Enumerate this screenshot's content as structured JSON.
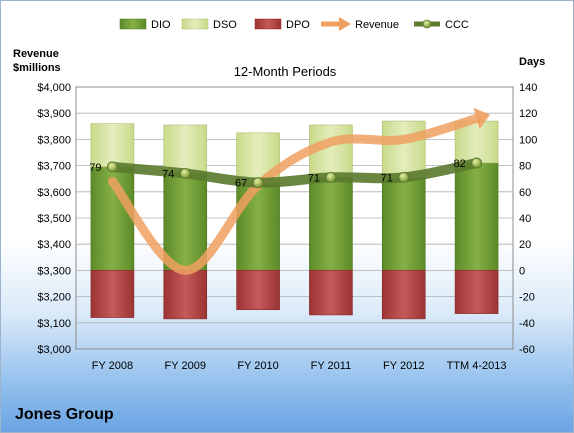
{
  "company": "Jones Group",
  "chart_data": {
    "type": "bar",
    "title": "12-Month Periods",
    "ylabel_left": [
      "Revenue",
      "$millions"
    ],
    "ylabel_right": "Days",
    "categories": [
      "FY 2008",
      "FY 2009",
      "FY 2010",
      "FY 2011",
      "FY 2012",
      "TTM 4-2013"
    ],
    "y_left_ticks": [
      "$3,000",
      "$3,100",
      "$3,200",
      "$3,300",
      "$3,400",
      "$3,500",
      "$3,600",
      "$3,700",
      "$3,800",
      "$3,900",
      "$4,000"
    ],
    "y_right_ticks": [
      "-60",
      "-40",
      "-20",
      "0",
      "20",
      "40",
      "60",
      "80",
      "100",
      "120",
      "140"
    ],
    "ylim_left": [
      3000,
      4000
    ],
    "ylim_right": [
      -60,
      140
    ],
    "legend_position": "top",
    "series": [
      {
        "name": "DIO",
        "type": "stacked-bar",
        "axis": "right",
        "color": "#77a13a",
        "values": [
          79,
          74,
          67,
          71,
          71,
          82
        ]
      },
      {
        "name": "DSO",
        "type": "stacked-bar",
        "axis": "right",
        "color": "#d7e4a3",
        "values": [
          33,
          37,
          38,
          40,
          43,
          32
        ]
      },
      {
        "name": "DPO",
        "type": "bar-negative",
        "axis": "right",
        "color": "#b94a4a",
        "values": [
          -36,
          -37,
          -30,
          -34,
          -37,
          -33
        ]
      },
      {
        "name": "Revenue",
        "type": "line",
        "axis": "left",
        "color": "#f0a060",
        "values": [
          3640,
          3300,
          3625,
          3790,
          3800,
          3880
        ]
      },
      {
        "name": "CCC",
        "type": "line",
        "axis": "right",
        "color": "#5a7a2e",
        "values": [
          79,
          74,
          67,
          71,
          71,
          82
        ]
      }
    ],
    "data_labels": [
      "79",
      "74",
      "67",
      "71",
      "71",
      "82"
    ]
  }
}
